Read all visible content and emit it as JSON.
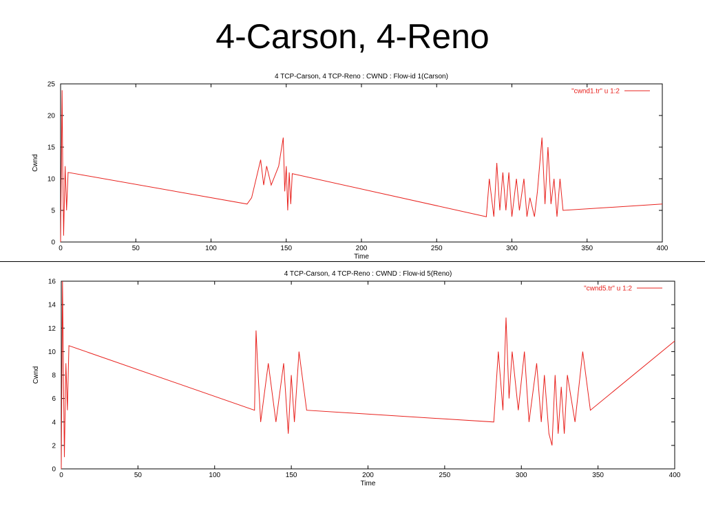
{
  "slide": {
    "title": "4-Carson, 4-Reno"
  },
  "colors": {
    "series": "#e8201c",
    "axis": "#000000"
  },
  "chart_data": [
    {
      "type": "line",
      "title": "4 TCP-Carson, 4 TCP-Reno : CWND : Flow-id 1(Carson)",
      "xlabel": "Time",
      "ylabel": "Cwnd",
      "xlim": [
        0,
        400
      ],
      "ylim": [
        0,
        25
      ],
      "xticks": [
        "0",
        "50",
        "100",
        "150",
        "200",
        "250",
        "300",
        "350",
        "400"
      ],
      "yticks": [
        "0",
        "5",
        "10",
        "15",
        "20",
        "25"
      ],
      "legend_position": "top-right",
      "series": [
        {
          "name": "\"cwnd1.tr\" u 1:2",
          "x": [
            0,
            1,
            1.4,
            2,
            3,
            4,
            5,
            124,
            127,
            133,
            135,
            137,
            140,
            145,
            148,
            149,
            150,
            151,
            152,
            153,
            154,
            283,
            285,
            288,
            290,
            292,
            294,
            296,
            298,
            300,
            303,
            305,
            308,
            310,
            312,
            315,
            317,
            320,
            322,
            324,
            326,
            328,
            330,
            332,
            334,
            400
          ],
          "y": [
            0,
            24,
            12,
            1,
            12,
            5,
            11,
            6,
            7,
            13,
            9,
            12,
            9,
            12,
            16.5,
            8,
            12,
            5,
            11,
            6,
            10.8,
            4,
            10,
            4,
            12.5,
            5,
            11,
            5,
            11,
            4,
            10,
            5,
            10,
            4,
            7,
            4,
            8,
            16.5,
            6,
            15,
            6,
            10,
            4,
            10,
            5,
            6
          ]
        }
      ]
    },
    {
      "type": "line",
      "title": "4 TCP-Carson, 4 TCP-Reno : CWND : Flow-id 5(Reno)",
      "xlabel": "Time",
      "ylabel": "Cwnd",
      "xlim": [
        0,
        400
      ],
      "ylim": [
        0,
        16
      ],
      "xticks": [
        "0",
        "50",
        "100",
        "150",
        "200",
        "250",
        "300",
        "350",
        "400"
      ],
      "yticks": [
        "0",
        "2",
        "4",
        "6",
        "8",
        "10",
        "12",
        "14",
        "16"
      ],
      "legend_position": "top-right",
      "series": [
        {
          "name": "\"cwnd5.tr\" u 1:2",
          "x": [
            0,
            0.8,
            1.5,
            2,
            3,
            4,
            5,
            126,
            127,
            128,
            130,
            135,
            140,
            145,
            148,
            150,
            152,
            155,
            160,
            282,
            285,
            288,
            290,
            292,
            294,
            298,
            302,
            305,
            310,
            313,
            315,
            318,
            320,
            322,
            324,
            326,
            328,
            330,
            335,
            340,
            345,
            400
          ],
          "y": [
            0,
            16,
            7,
            1,
            9,
            5,
            10.5,
            5,
            11.8,
            9,
            4,
            9,
            4,
            9,
            3,
            8,
            4,
            10,
            5,
            4,
            10,
            5,
            12.9,
            6,
            10,
            5,
            10,
            4,
            9,
            4,
            8,
            3,
            2,
            8,
            3,
            7,
            3,
            8,
            4,
            10,
            5,
            10.9
          ]
        }
      ]
    }
  ]
}
